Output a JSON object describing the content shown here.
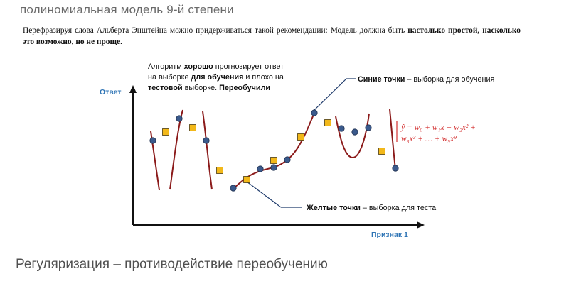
{
  "top_heading": "полиномиальная модель 9-й степени",
  "quote": {
    "normal": "Перефразируя слова Альберта Энштейна можно придерживаться такой рекомендации: Модель должна быть ",
    "bold": "настолько простой, насколько это возможно, но не проще."
  },
  "figure": {
    "y_axis_label": "Ответ",
    "x_axis_label": "Признак 1",
    "overfit_note": {
      "line1_a": "Алгоритм ",
      "line1_b": "хорошо",
      "line1_c": " прогнозирует ответ",
      "line2_a": "на выборке ",
      "line2_b": "для обучения",
      "line2_c": " и плохо на",
      "line3_a": "тестовой",
      "line3_b": " выборке. ",
      "line3_c": "Переобучили"
    },
    "blue_label_bold": "Синие точки",
    "blue_label_rest": " – выборка для обучения",
    "yellow_label_bold": "Желтые точки",
    "yellow_label_rest": " – выборка для теста",
    "formula_line1": "ŷ =  w₀ + w₁x +  w₂x² +",
    "formula_line2": "w₃x³ + … + w₉x⁹",
    "colors": {
      "curve": "#8b1a1a",
      "train_point": "#3b5a8c",
      "test_point": "#f2b81a",
      "axis_label": "#2e74b5",
      "formula": "#d32f2f"
    }
  },
  "chart_data": {
    "type": "scatter",
    "title": "",
    "xlabel": "Признак 1",
    "ylabel": "Ответ",
    "series": [
      {
        "name": "Синие точки",
        "x": [
          215,
          252,
          290,
          328,
          366,
          385,
          404,
          442,
          480,
          499,
          518,
          556
        ],
        "y": [
          198,
          167,
          198,
          265,
          238,
          236,
          225,
          159,
          181,
          186,
          180,
          237
        ]
      },
      {
        "name": "Желтые точки",
        "x": [
          233,
          271,
          309,
          347,
          385,
          423,
          461,
          537
        ],
        "y": [
          186,
          180,
          240,
          253,
          226,
          193,
          173,
          213
        ]
      }
    ]
  }
}
